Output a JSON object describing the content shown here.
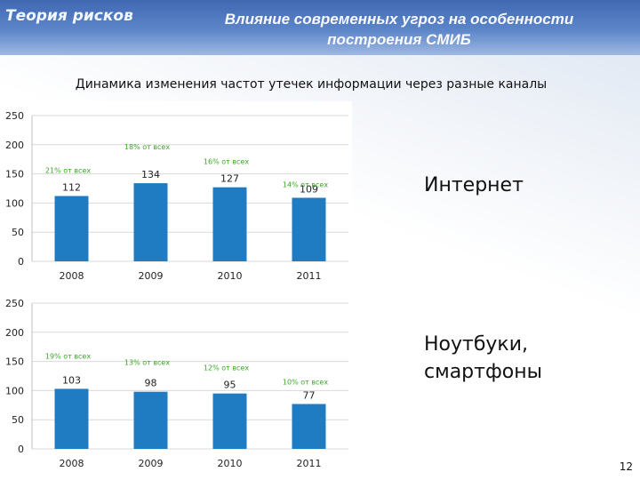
{
  "header": {
    "section_title": "Теория рисков",
    "slide_title": "Влияние современных угроз на особенности построения СМИБ"
  },
  "subtitle": "Динамика изменения частот утечек информации через разные каналы",
  "labels": {
    "chart1": "Интернет",
    "chart2_line1": "Ноутбуки,",
    "chart2_line2": "смартфоны"
  },
  "page_number": "12",
  "colors": {
    "bar": "#1f7cc2",
    "annotation": "#3aa626",
    "grid": "#d9d9d9"
  },
  "chart_data": [
    {
      "type": "bar",
      "title": "",
      "xlabel": "",
      "ylabel": "",
      "categories": [
        "2008",
        "2009",
        "2010",
        "2011"
      ],
      "values": [
        112,
        134,
        127,
        109
      ],
      "share_labels": [
        "21% от всех",
        "18% от всех",
        "16% от всех",
        "14% от всех"
      ],
      "ylim": [
        0,
        250
      ],
      "yticks": [
        0,
        50,
        100,
        150,
        200,
        250
      ],
      "grid": true
    },
    {
      "type": "bar",
      "title": "",
      "xlabel": "",
      "ylabel": "",
      "categories": [
        "2008",
        "2009",
        "2010",
        "2011"
      ],
      "values": [
        103,
        98,
        95,
        77
      ],
      "share_labels": [
        "19% от всех",
        "13% от всех",
        "12% от всех",
        "10% от всех"
      ],
      "ylim": [
        0,
        250
      ],
      "yticks": [
        0,
        50,
        100,
        150,
        200,
        250
      ],
      "grid": true
    }
  ]
}
